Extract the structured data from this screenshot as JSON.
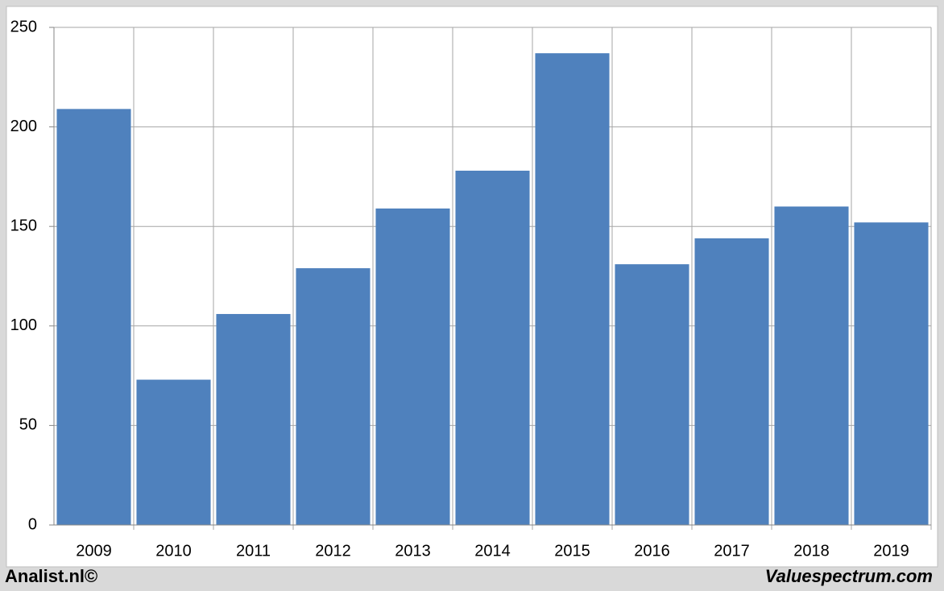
{
  "chart_data": {
    "type": "bar",
    "categories": [
      "2009",
      "2010",
      "2011",
      "2012",
      "2013",
      "2014",
      "2015",
      "2016",
      "2017",
      "2018",
      "2019"
    ],
    "values": [
      209,
      73,
      106,
      129,
      159,
      178,
      237,
      131,
      144,
      160,
      152
    ],
    "color": "#4f81bd",
    "ylim": [
      0,
      250
    ],
    "yticks": [
      0,
      50,
      100,
      150,
      200,
      250
    ],
    "grid": true
  },
  "footer": {
    "left": "Analist.nl©",
    "right": "Valuespectrum.com"
  }
}
